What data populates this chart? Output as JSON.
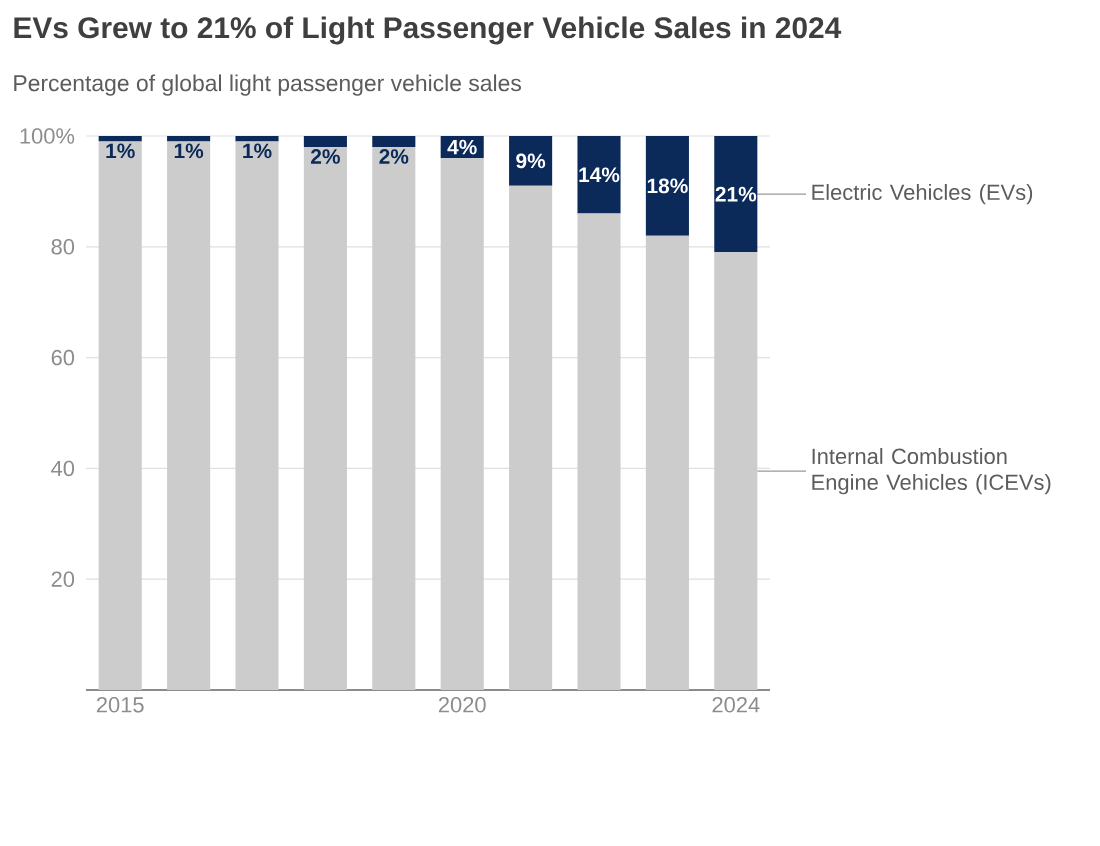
{
  "chart_data": {
    "type": "bar",
    "stacked": true,
    "title": "EVs Grew to 21% of Light Passenger Vehicle Sales in 2024",
    "subtitle": "Percentage of global light passenger vehicle sales",
    "categories": [
      "2015",
      null,
      null,
      null,
      null,
      "2020",
      null,
      null,
      null,
      "2024"
    ],
    "series": [
      {
        "name": "Internal Combustion Engine Vehicles (ICEVs)",
        "color": "#cccccc",
        "values": [
          99,
          99,
          99,
          98,
          98,
          96,
          91,
          86,
          82,
          79
        ]
      },
      {
        "name": "Electric Vehicles (EVs)",
        "color": "#0b2a5a",
        "values": [
          1,
          1,
          1,
          2,
          2,
          4,
          9,
          14,
          18,
          21
        ],
        "value_labels": [
          "1%",
          "1%",
          "1%",
          "2%",
          "2%",
          "4%",
          "9%",
          "14%",
          "18%",
          "21%"
        ]
      }
    ],
    "ylim": [
      0,
      100
    ],
    "yticks": [
      20,
      40,
      60,
      80,
      {
        "value": 100,
        "label": "100%"
      }
    ],
    "grid": "y"
  }
}
